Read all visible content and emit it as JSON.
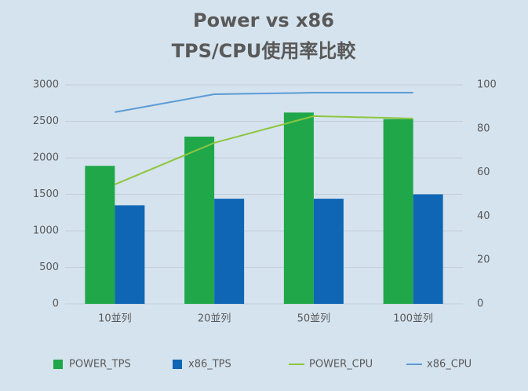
{
  "chart_data": {
    "type": "bar-line",
    "title": [
      "Power vs x86",
      "TPS/CPU使用率比較"
    ],
    "categories": [
      "10並列",
      "20並列",
      "50並列",
      "100並列"
    ],
    "series": [
      {
        "name": "POWER_TPS",
        "type": "bar",
        "color": "#1fa74a",
        "values": [
          1890,
          2290,
          2620,
          2530
        ]
      },
      {
        "name": "x86_TPS",
        "type": "bar",
        "color": "#0f66b5",
        "values": [
          1350,
          1440,
          1440,
          1500
        ]
      },
      {
        "name": "POWER_CPU",
        "type": "line",
        "axis": "y2",
        "color": "#8dc63f",
        "values": [
          54.5,
          73.5,
          85.7,
          84.6
        ]
      },
      {
        "name": "x86_CPU",
        "type": "line",
        "axis": "y2",
        "color": "#5b9bd5",
        "values": [
          87.5,
          95.7,
          96.4,
          96.4
        ]
      }
    ],
    "ylim": [
      0,
      3000
    ],
    "yticks": [
      0,
      500,
      1000,
      1500,
      2000,
      2500,
      3000
    ],
    "y2lim": [
      0,
      100
    ],
    "y2ticks": [
      0,
      20,
      40,
      60,
      80,
      100
    ],
    "grid": true,
    "legend": "bottom"
  }
}
